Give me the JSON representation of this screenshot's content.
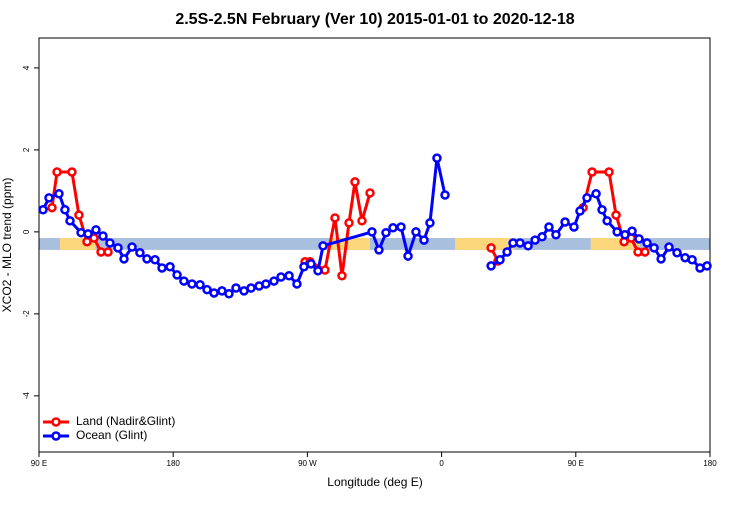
{
  "chart_data": {
    "type": "line",
    "title": "2.5S-2.5N February (Ver 10)   2015-01-01 to 2020-12-18",
    "x_label": "Longitude (deg E)",
    "y_label": "XCO2 - MLO trend (ppm)",
    "xlim": [
      90,
      540
    ],
    "ylim": [
      -5.37,
      4.73
    ],
    "xticks": [
      {
        "value": 90,
        "label": "90 E"
      },
      {
        "value": 180,
        "label": "180"
      },
      {
        "value": 270,
        "label": "90 W"
      },
      {
        "value": 360,
        "label": "0"
      },
      {
        "value": 450,
        "label": "90 E"
      },
      {
        "value": 540,
        "label": "180"
      }
    ],
    "yticks": [
      -4,
      -2,
      0,
      2,
      4
    ],
    "legend": "bottom-left",
    "band": {
      "ymin": -0.44,
      "ymax": -0.15,
      "ocean_color": "#a8bfdd",
      "land_color": "#fcd77c",
      "land": [
        [
          104,
          128
        ],
        [
          285,
          312
        ],
        [
          369,
          409
        ],
        [
          460,
          493
        ]
      ]
    },
    "series": [
      {
        "name": "Land (Nadir&Glint)",
        "color": "#ff0000",
        "x": [
          98.7,
          102.1,
          112.1,
          116.8,
          122.2,
          126.9,
          131.6,
          136.3,
          null,
          268.4,
          271.8,
          281.8,
          288.5,
          293.2,
          297.9,
          301.9,
          306.6,
          312,
          null,
          393.2,
          397.8,
          null,
          454.9,
          460.9,
          472.3,
          477,
          482.4,
          487.1,
          491.7,
          496.4
        ],
        "values": [
          0.59,
          1.46,
          1.46,
          0.41,
          -0.24,
          -0.15,
          -0.49,
          -0.49,
          null,
          -0.73,
          -0.73,
          -0.93,
          0.34,
          -1.07,
          0.22,
          1.22,
          0.27,
          0.95,
          null,
          -0.39,
          -0.71,
          null,
          0.59,
          1.46,
          1.46,
          0.41,
          -0.24,
          -0.15,
          -0.49,
          -0.49
        ]
      },
      {
        "name": "Ocean (Glint)",
        "color": "#0000ff",
        "x": [
          92.7,
          96.7,
          103.4,
          107.4,
          110.8,
          118.2,
          122.9,
          128.2,
          132.9,
          137.6,
          143.0,
          147.0,
          152.4,
          157.7,
          162.4,
          167.8,
          172.5,
          177.9,
          182.6,
          187.2,
          192.6,
          198.0,
          202.7,
          207.4,
          212.7,
          217.4,
          222.1,
          227.5,
          232.2,
          237.6,
          242.2,
          247.6,
          252.3,
          257.7,
          263.0,
          267.7,
          272.4,
          277.1,
          280.5,
          313.3,
          318.0,
          322.7,
          327.4,
          332.8,
          337.5,
          342.8,
          348.2,
          352.2,
          356.9,
          362.3,
          null,
          393.2,
          399.2,
          403.9,
          407.9,
          412.6,
          418,
          422.7,
          427.4,
          432,
          436.7,
          442.8,
          448.8,
          452.8,
          457.5,
          463.6,
          467.6,
          471,
          477.7,
          483,
          487.7,
          492.4,
          497.8,
          502.5,
          507.2,
          512.5,
          517.9,
          523.3,
          528,
          533.3,
          538
        ],
        "values": [
          0.54,
          0.83,
          0.93,
          0.54,
          0.27,
          -0.02,
          -0.05,
          0.05,
          -0.1,
          -0.27,
          -0.39,
          -0.66,
          -0.37,
          -0.51,
          -0.66,
          -0.68,
          -0.88,
          -0.85,
          -1.05,
          -1.2,
          -1.27,
          -1.29,
          -1.41,
          -1.49,
          -1.44,
          -1.51,
          -1.37,
          -1.44,
          -1.37,
          -1.32,
          -1.27,
          -1.2,
          -1.1,
          -1.07,
          -1.27,
          -0.85,
          -0.78,
          -0.95,
          -0.34,
          0,
          -0.44,
          -0.02,
          0.1,
          0.12,
          -0.59,
          0,
          -0.2,
          0.22,
          1.8,
          0.9,
          null,
          -0.83,
          -0.68,
          -0.49,
          -0.27,
          -0.27,
          -0.34,
          -0.2,
          -0.12,
          0.12,
          -0.07,
          0.24,
          0.12,
          0.51,
          0.83,
          0.93,
          0.54,
          0.27,
          0,
          -0.07,
          0.02,
          -0.17,
          -0.27,
          -0.39,
          -0.66,
          -0.37,
          -0.51,
          -0.63,
          -0.68,
          -0.88,
          -0.83
        ]
      }
    ]
  }
}
